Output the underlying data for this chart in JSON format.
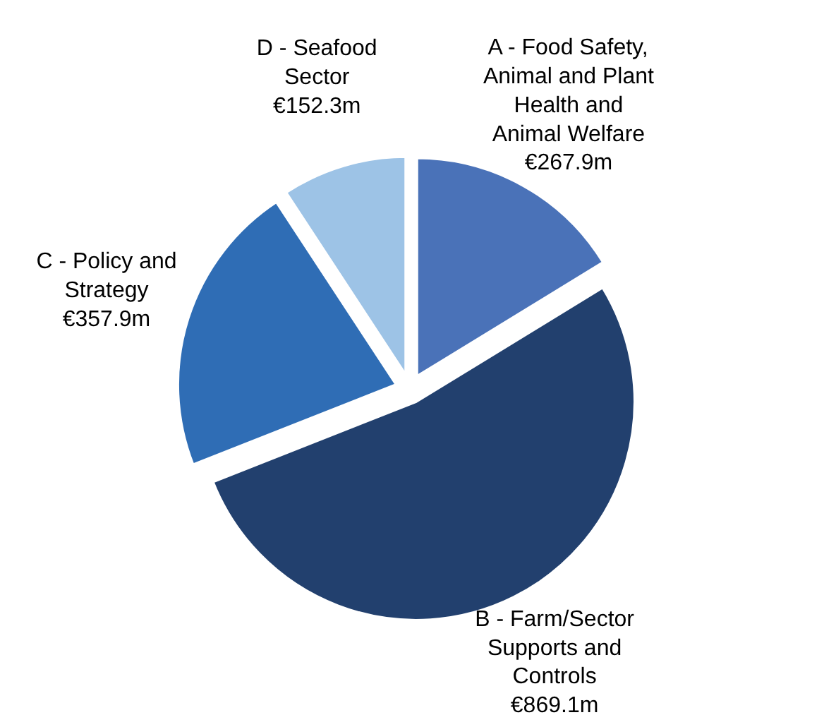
{
  "chart_data": {
    "type": "pie",
    "categories": [
      "A - Food Safety, Animal and Plant Health and Animal Welfare",
      "B - Farm/Sector Supports and Controls",
      "C - Policy and Strategy",
      "D - Seafood Sector"
    ],
    "values": [
      267.9,
      869.1,
      357.9,
      152.3
    ],
    "value_labels": [
      "€267.9m",
      "€869.1m",
      "€357.9m",
      "€152.3m"
    ],
    "colors": [
      "#4a72b8",
      "#22406e",
      "#2f6db5",
      "#9dc3e6"
    ]
  }
}
